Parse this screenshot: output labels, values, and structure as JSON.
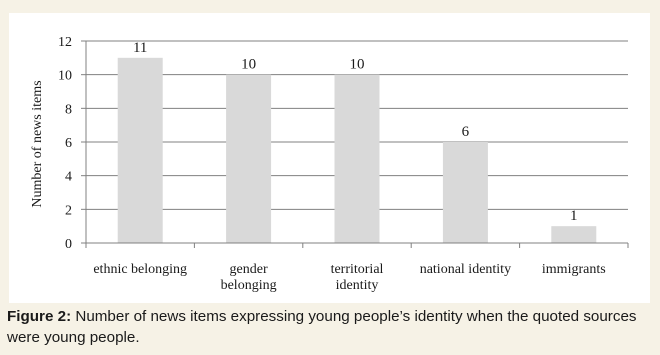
{
  "chart_data": {
    "type": "bar",
    "categories": [
      [
        "ethnic belonging"
      ],
      [
        "gender",
        "belonging"
      ],
      [
        "territorial",
        "identity"
      ],
      [
        "national identity"
      ],
      [
        "immigrants"
      ]
    ],
    "values": [
      11,
      10,
      10,
      6,
      1
    ],
    "value_labels": [
      "11",
      "10",
      "10",
      "6",
      "1"
    ],
    "ylabel": "Number of news items",
    "xlabel": "",
    "ylim": [
      0,
      12
    ],
    "yticks": [
      0,
      2,
      4,
      6,
      8,
      10,
      12
    ],
    "grid": true,
    "legend": "none",
    "colors": {
      "bar": "#d9d9d9",
      "grid": "#808080",
      "axis": "#808080"
    }
  },
  "caption": {
    "label": "Figure 2:",
    "text": " Number of news items expressing young people’s identity when the quoted sources were young people."
  },
  "colors": {
    "page_background": "#f6f2e6",
    "plot_background": "#ffffff"
  }
}
